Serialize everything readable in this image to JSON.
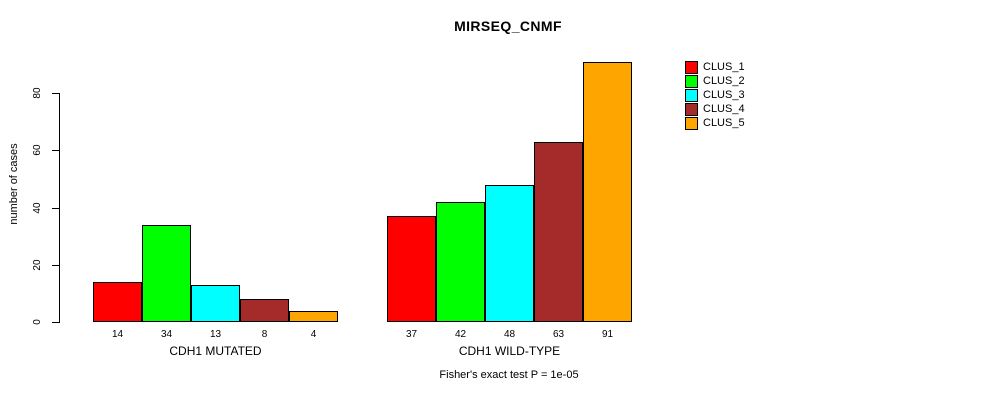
{
  "chart_data": {
    "type": "bar",
    "title": "MIRSEQ_CNMF",
    "ylabel": "number of cases",
    "xlabel": "Fisher's exact test P = 1e-05",
    "yticks": [
      0,
      20,
      40,
      60,
      80
    ],
    "ylim": [
      0,
      91
    ],
    "grid": false,
    "legend_position": "top-right",
    "clusters": [
      "CLUS_1",
      "CLUS_2",
      "CLUS_3",
      "CLUS_4",
      "CLUS_5"
    ],
    "colors": [
      "#FF0000",
      "#00FF00",
      "#00FFFF",
      "#A52A2A",
      "#FFA500"
    ],
    "groups": [
      {
        "label": "CDH1 MUTATED",
        "values": [
          14,
          34,
          13,
          8,
          4
        ]
      },
      {
        "label": "CDH1 WILD-TYPE",
        "values": [
          37,
          42,
          48,
          63,
          91
        ]
      }
    ]
  }
}
